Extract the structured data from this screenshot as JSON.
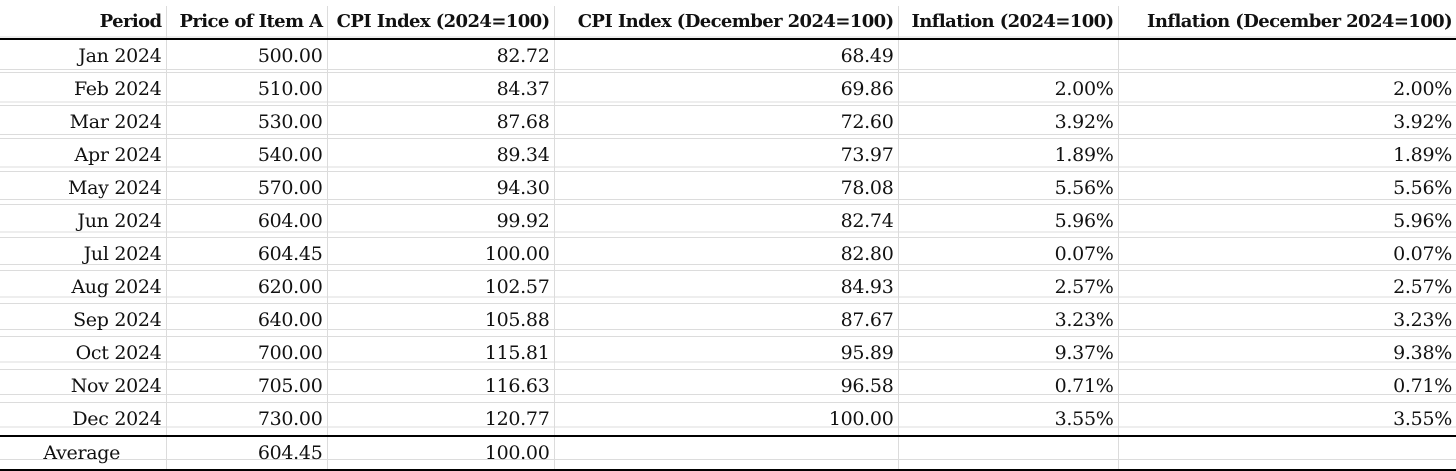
{
  "headers": [
    "Period",
    "Price of Item A",
    "CPI Index (2024=100)",
    "CPI Index (December 2024=100)",
    "Inflation (2024=100)",
    "Inflation (December 2024=100)"
  ],
  "rows": [
    [
      "Jan 2024",
      "500.00",
      "82.72",
      "68.49",
      "",
      ""
    ],
    [
      "Feb 2024",
      "510.00",
      "84.37",
      "69.86",
      "2.00%",
      "2.00%"
    ],
    [
      "Mar 2024",
      "530.00",
      "87.68",
      "72.60",
      "3.92%",
      "3.92%"
    ],
    [
      "Apr 2024",
      "540.00",
      "89.34",
      "73.97",
      "1.89%",
      "1.89%"
    ],
    [
      "May 2024",
      "570.00",
      "94.30",
      "78.08",
      "5.56%",
      "5.56%"
    ],
    [
      "Jun 2024",
      "604.00",
      "99.92",
      "82.74",
      "5.96%",
      "5.96%"
    ],
    [
      "Jul 2024",
      "604.45",
      "100.00",
      "82.80",
      "0.07%",
      "0.07%"
    ],
    [
      "Aug 2024",
      "620.00",
      "102.57",
      "84.93",
      "2.57%",
      "2.57%"
    ],
    [
      "Sep 2024",
      "640.00",
      "105.88",
      "87.67",
      "3.23%",
      "3.23%"
    ],
    [
      "Oct 2024",
      "700.00",
      "115.81",
      "95.89",
      "9.37%",
      "9.38%"
    ],
    [
      "Nov 2024",
      "705.00",
      "116.63",
      "96.58",
      "0.71%",
      "0.71%"
    ],
    [
      "Dec 2024",
      "730.00",
      "120.77",
      "100.00",
      "3.55%",
      "3.55%"
    ]
  ],
  "average": [
    "Average",
    "604.45",
    "100.00",
    "",
    "",
    ""
  ]
}
